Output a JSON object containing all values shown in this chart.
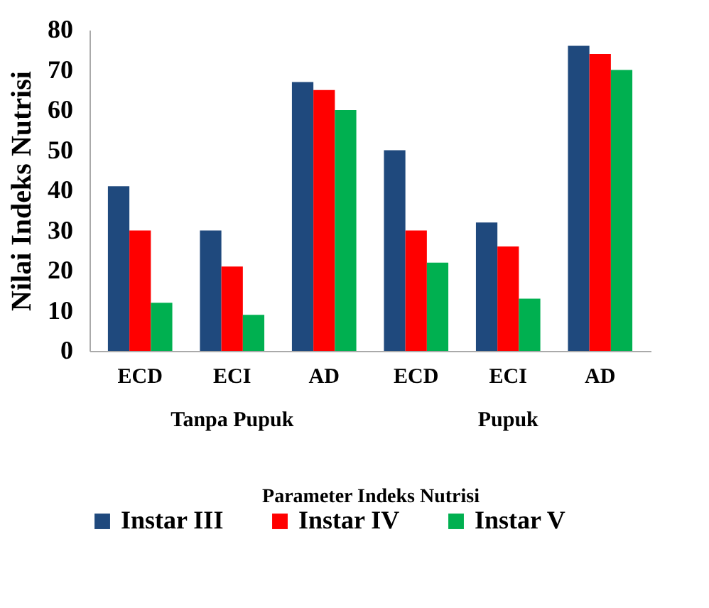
{
  "chart_data": {
    "type": "bar",
    "ylabel": "Nilai Indeks Nutrisi",
    "xlabel": "Parameter Indeks Nutrisi",
    "categories": [
      "ECD",
      "ECI",
      "AD",
      "ECD",
      "ECI",
      "AD"
    ],
    "annotations": [
      "Tanpa Pupuk",
      "Pupuk"
    ],
    "series": [
      {
        "name": "Instar III",
        "color": "#1f497d",
        "values": [
          41,
          30,
          67,
          50,
          32,
          76
        ]
      },
      {
        "name": "Instar IV",
        "color": "#ff0000",
        "values": [
          30,
          21,
          65,
          30,
          26,
          74
        ]
      },
      {
        "name": "Instar V",
        "color": "#00b050",
        "values": [
          12,
          9,
          60,
          22,
          13,
          70
        ]
      }
    ],
    "ylim": [
      0,
      80
    ],
    "yticks": [
      0,
      10,
      20,
      30,
      40,
      50,
      60,
      70,
      80
    ],
    "grid": false,
    "legend": "bottom"
  }
}
